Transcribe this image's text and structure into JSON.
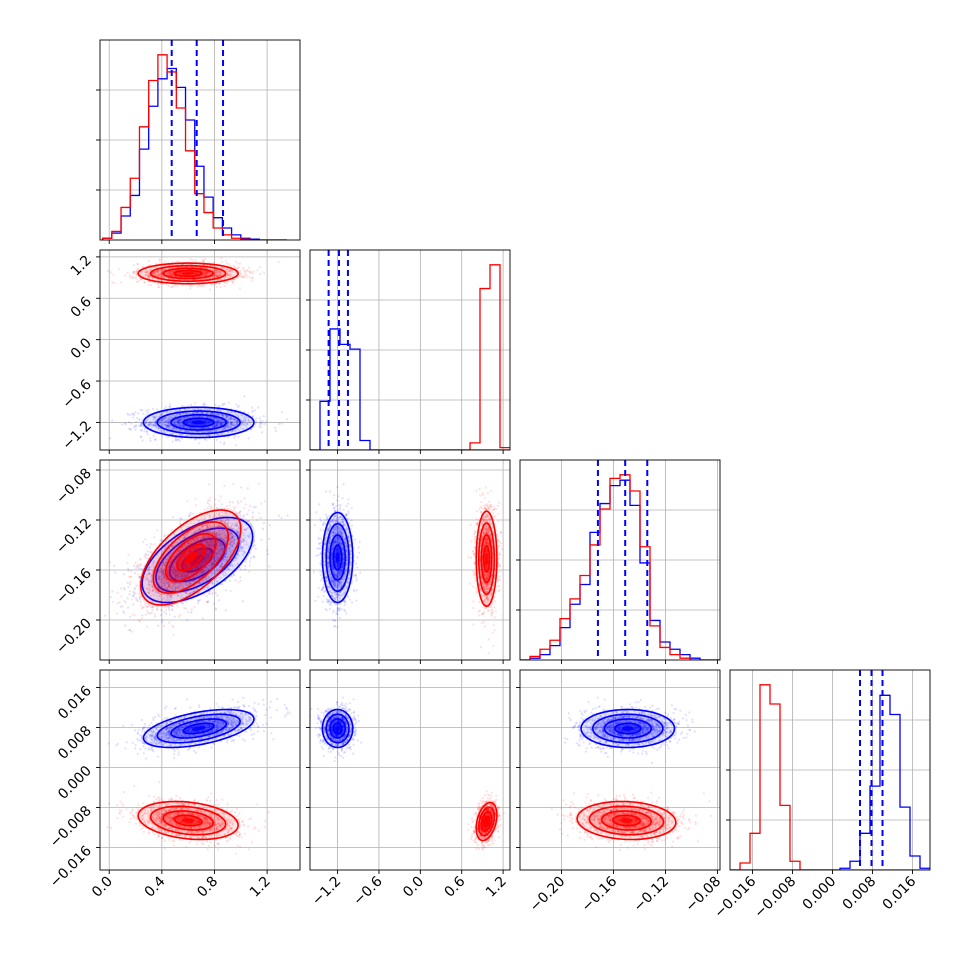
{
  "colors": {
    "series_a": "#0000ff",
    "series_b": "#ff0000",
    "grid": "#b0b0b0",
    "frame": "#000000",
    "background": "#ffffff"
  },
  "chart_data": {
    "type": "corner",
    "n_params": 4,
    "grid": true,
    "legend": "none",
    "quantile_lines": {
      "style": "dashed",
      "color": "blue",
      "p0": [
        0.475,
        0.665,
        0.865
      ],
      "p1": [
        -1.33,
        -1.18,
        -1.05
      ],
      "p2": [
        -0.172,
        -0.151,
        -0.134
      ],
      "p3": [
        0.0055,
        0.0078,
        0.01
      ]
    },
    "x_axes": [
      {
        "range": [
          -0.07,
          1.45
        ],
        "ticks": [
          0.0,
          0.4,
          0.8,
          1.2
        ],
        "tick_labels": [
          "0.0",
          "0.4",
          "0.8",
          "1.2"
        ]
      },
      {
        "range": [
          -1.6,
          1.3
        ],
        "ticks": [
          -1.2,
          -0.6,
          0.0,
          0.6,
          1.2
        ],
        "tick_labels": [
          "−1.2",
          "−0.6",
          "0.0",
          "0.6",
          "1.2"
        ]
      },
      {
        "range": [
          -0.232,
          -0.078
        ],
        "ticks": [
          -0.2,
          -0.16,
          -0.12,
          -0.08
        ],
        "tick_labels": [
          "−0.20",
          "−0.16",
          "−0.12",
          "−0.08"
        ]
      },
      {
        "range": [
          -0.0205,
          0.0195
        ],
        "ticks": [
          -0.016,
          -0.008,
          0.0,
          0.008,
          0.016
        ],
        "tick_labels": [
          "−0.016",
          "−0.008",
          "0.000",
          "0.008",
          "0.016"
        ]
      }
    ],
    "y_axes": [
      null,
      {
        "range": [
          -1.6,
          1.3
        ],
        "ticks": [
          -1.2,
          -0.6,
          0.0,
          0.6,
          1.2
        ],
        "tick_labels": [
          "−1.2",
          "−0.6",
          "0.0",
          "0.6",
          "1.2"
        ]
      },
      {
        "range": [
          -0.232,
          -0.072
        ],
        "ticks": [
          -0.2,
          -0.16,
          -0.12,
          -0.08
        ],
        "tick_labels": [
          "−0.20",
          "−0.16",
          "−0.12",
          "−0.08"
        ]
      },
      {
        "range": [
          -0.0205,
          0.0195
        ],
        "ticks": [
          -0.016,
          -0.008,
          0.0,
          0.008,
          0.016
        ],
        "tick_labels": [
          "−0.016",
          "−0.008",
          "0.000",
          "0.008",
          "0.016"
        ]
      }
    ],
    "histograms": [
      {
        "param": 0,
        "bin_range": [
          -0.05,
          1.35
        ],
        "bins": 20,
        "series": [
          {
            "color": "blue",
            "counts": [
              0.01,
              0.04,
              0.14,
              0.26,
              0.53,
              0.78,
              0.94,
              1.0,
              0.89,
              0.7,
              0.43,
              0.25,
              0.13,
              0.07,
              0.03,
              0.01,
              0.005,
              0,
              0,
              0
            ]
          },
          {
            "color": "red",
            "counts": [
              0.01,
              0.05,
              0.19,
              0.36,
              0.66,
              0.93,
              1.08,
              0.98,
              0.77,
              0.52,
              0.27,
              0.16,
              0.07,
              0.03,
              0.01,
              0.005,
              0,
              0,
              0,
              0
            ]
          }
        ]
      },
      {
        "param": 1,
        "bin_range": [
          -1.6,
          1.3
        ],
        "bins": 20,
        "series": [
          {
            "color": "blue",
            "counts": [
              0,
              0.41,
              1.02,
              0.89,
              0.85,
              0.08,
              0,
              0,
              0,
              0,
              0,
              0,
              0,
              0,
              0,
              0,
              0,
              0,
              0,
              0
            ]
          },
          {
            "color": "red",
            "counts": [
              0,
              0,
              0,
              0,
              0,
              0,
              0,
              0,
              0,
              0,
              0,
              0,
              0,
              0,
              0,
              0,
              0.06,
              1.36,
              1.56,
              0.02
            ]
          }
        ]
      },
      {
        "param": 2,
        "bin_range": [
          -0.232,
          -0.078
        ],
        "bins": 20,
        "series": [
          {
            "color": "blue",
            "counts": [
              0,
              0.01,
              0.03,
              0.08,
              0.18,
              0.31,
              0.42,
              0.71,
              0.87,
              0.97,
              1.0,
              0.86,
              0.54,
              0.22,
              0.1,
              0.06,
              0.03,
              0.01,
              0,
              0
            ]
          },
          {
            "color": "red",
            "counts": [
              0,
              0.02,
              0.06,
              0.11,
              0.23,
              0.34,
              0.47,
              0.64,
              0.84,
              1.01,
              1.03,
              0.94,
              0.63,
              0.19,
              0.07,
              0.03,
              0.01,
              0,
              0,
              0
            ]
          }
        ]
      },
      {
        "param": 3,
        "bin_range": [
          -0.0205,
          0.0195
        ],
        "bins": 20,
        "series": [
          {
            "color": "blue",
            "counts": [
              0,
              0,
              0,
              0,
              0,
              0,
              0,
              0,
              0,
              0,
              0,
              0.01,
              0.05,
              0.21,
              0.48,
              1.0,
              0.89,
              0.36,
              0.08,
              0.01
            ]
          },
          {
            "color": "red",
            "counts": [
              0,
              0.04,
              0.21,
              1.06,
              0.95,
              0.37,
              0.05,
              0,
              0,
              0,
              0,
              0,
              0,
              0,
              0,
              0,
              0,
              0,
              0,
              0
            ]
          }
        ]
      }
    ],
    "joint_distributions": [
      {
        "x_param": 0,
        "y_param": 1,
        "blobs": [
          {
            "color": "blue",
            "center": [
              0.68,
              -1.2
            ],
            "sigma": [
              0.21,
              0.11
            ],
            "corr": 0.0
          },
          {
            "color": "red",
            "center": [
              0.6,
              0.96
            ],
            "sigma": [
              0.19,
              0.075
            ],
            "corr": 0.0
          }
        ]
      },
      {
        "x_param": 0,
        "y_param": 2,
        "blobs": [
          {
            "color": "blue",
            "center": [
              0.67,
              -0.152
            ],
            "sigma": [
              0.21,
              0.017
            ],
            "corr": 0.55
          },
          {
            "color": "red",
            "center": [
              0.62,
              -0.15
            ],
            "sigma": [
              0.19,
              0.019
            ],
            "corr": 0.6
          }
        ]
      },
      {
        "x_param": 0,
        "y_param": 3,
        "blobs": [
          {
            "color": "blue",
            "center": [
              0.68,
              0.0078
            ],
            "sigma": [
              0.21,
              0.0019
            ],
            "corr": 0.5
          },
          {
            "color": "red",
            "center": [
              0.6,
              -0.0106
            ],
            "sigma": [
              0.19,
              0.0019
            ],
            "corr": -0.25
          }
        ]
      },
      {
        "x_param": 1,
        "y_param": 2,
        "blobs": [
          {
            "color": "blue",
            "center": [
              -1.2,
              -0.15
            ],
            "sigma": [
              0.11,
              0.018
            ],
            "corr": 0.0
          },
          {
            "color": "red",
            "center": [
              0.96,
              -0.151
            ],
            "sigma": [
              0.075,
              0.019
            ],
            "corr": 0.0
          }
        ]
      },
      {
        "x_param": 1,
        "y_param": 3,
        "blobs": [
          {
            "color": "blue",
            "center": [
              -1.2,
              0.0078
            ],
            "sigma": [
              0.11,
              0.0019
            ],
            "corr": 0.0
          },
          {
            "color": "red",
            "center": [
              0.96,
              -0.0108
            ],
            "sigma": [
              0.075,
              0.0019
            ],
            "corr": 0.35
          }
        ]
      },
      {
        "x_param": 2,
        "y_param": 3,
        "blobs": [
          {
            "color": "blue",
            "center": [
              -0.149,
              0.0078
            ],
            "sigma": [
              0.018,
              0.0019
            ],
            "corr": 0.0
          },
          {
            "color": "red",
            "center": [
              -0.15,
              -0.0106
            ],
            "sigma": [
              0.019,
              0.0019
            ],
            "corr": -0.1
          }
        ]
      }
    ]
  }
}
